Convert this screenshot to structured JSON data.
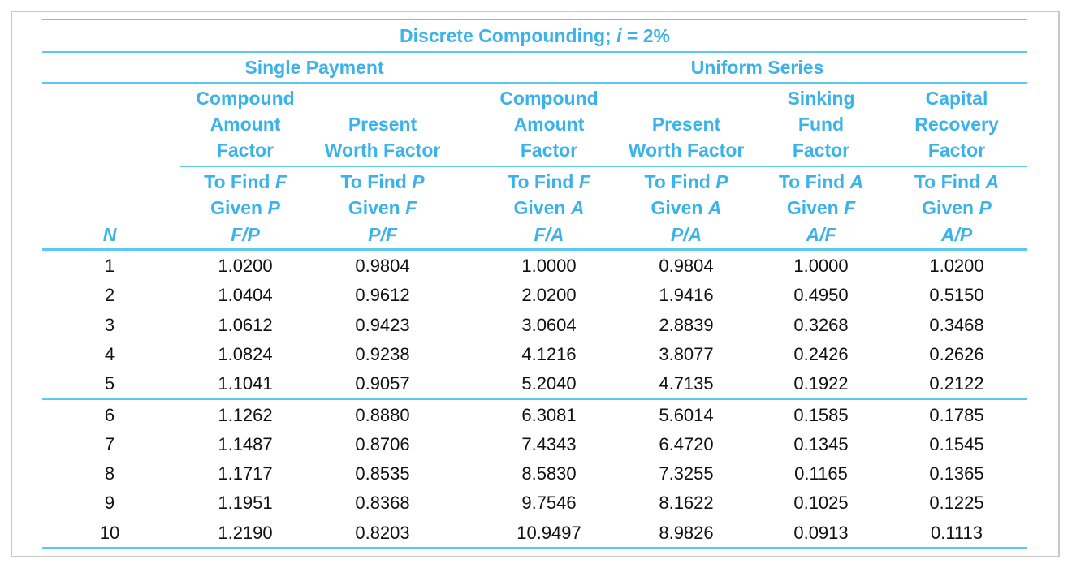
{
  "title_prefix": "Discrete Compounding; ",
  "title_var": "i",
  "title_suffix": " = 2%",
  "group_single": "Single Payment",
  "group_uniform": "Uniform Series",
  "n_label": "N",
  "columns": [
    {
      "name": [
        "Compound",
        "Amount",
        "Factor"
      ],
      "find": "F",
      "given": "P",
      "sym": [
        "F",
        "P"
      ]
    },
    {
      "name": [
        "Present",
        "Worth Factor"
      ],
      "find": "P",
      "given": "F",
      "sym": [
        "P",
        "F"
      ]
    },
    {
      "name": [
        "Compound",
        "Amount",
        "Factor"
      ],
      "find": "F",
      "given": "A",
      "sym": [
        "F",
        "A"
      ]
    },
    {
      "name": [
        "Present",
        "Worth Factor"
      ],
      "find": "P",
      "given": "A",
      "sym": [
        "P",
        "A"
      ]
    },
    {
      "name": [
        "Sinking",
        "Fund",
        "Factor"
      ],
      "find": "A",
      "given": "F",
      "sym": [
        "A",
        "F"
      ]
    },
    {
      "name": [
        "Capital",
        "Recovery",
        "Factor"
      ],
      "find": "A",
      "given": "P",
      "sym": [
        "A",
        "P"
      ]
    }
  ],
  "to_find_label": "To Find ",
  "given_label": "Given ",
  "rows": [
    [
      "1",
      "1.0200",
      "0.9804",
      "1.0000",
      "0.9804",
      "1.0000",
      "1.0200"
    ],
    [
      "2",
      "1.0404",
      "0.9612",
      "2.0200",
      "1.9416",
      "0.4950",
      "0.5150"
    ],
    [
      "3",
      "1.0612",
      "0.9423",
      "3.0604",
      "2.8839",
      "0.3268",
      "0.3468"
    ],
    [
      "4",
      "1.0824",
      "0.9238",
      "4.1216",
      "3.8077",
      "0.2426",
      "0.2626"
    ],
    [
      "5",
      "1.1041",
      "0.9057",
      "5.2040",
      "4.7135",
      "0.1922",
      "0.2122"
    ],
    [
      "6",
      "1.1262",
      "0.8880",
      "6.3081",
      "5.6014",
      "0.1585",
      "0.1785"
    ],
    [
      "7",
      "1.1487",
      "0.8706",
      "7.4343",
      "6.4720",
      "0.1345",
      "0.1545"
    ],
    [
      "8",
      "1.1717",
      "0.8535",
      "8.5830",
      "7.3255",
      "0.1165",
      "0.1365"
    ],
    [
      "9",
      "1.1951",
      "0.8368",
      "9.7546",
      "8.1622",
      "0.1025",
      "0.1225"
    ],
    [
      "10",
      "1.2190",
      "0.8203",
      "10.9497",
      "8.9826",
      "0.0913",
      "0.1113"
    ]
  ]
}
